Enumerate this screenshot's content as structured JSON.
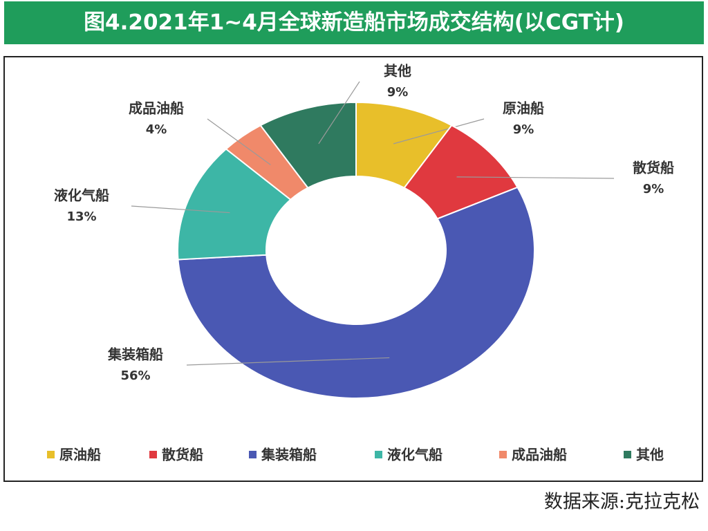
{
  "chart_data": {
    "type": "donut",
    "title": "图4.2021年1~4月全球新造船市场成交结构(以CGT计)",
    "categories": [
      "原油船",
      "散货船",
      "集装箱船",
      "液化气船",
      "成品油船",
      "其他"
    ],
    "values": [
      9,
      9,
      56,
      13,
      4,
      9
    ],
    "value_labels": [
      "9%",
      "9%",
      "56%",
      "13%",
      "4%",
      "9%"
    ],
    "colors": [
      "#e8bf2a",
      "#e0393f",
      "#4a58b3",
      "#3db6a6",
      "#f0896a",
      "#2f7a5f"
    ],
    "legend": "bottom",
    "source": "数据来源:克拉克松"
  }
}
